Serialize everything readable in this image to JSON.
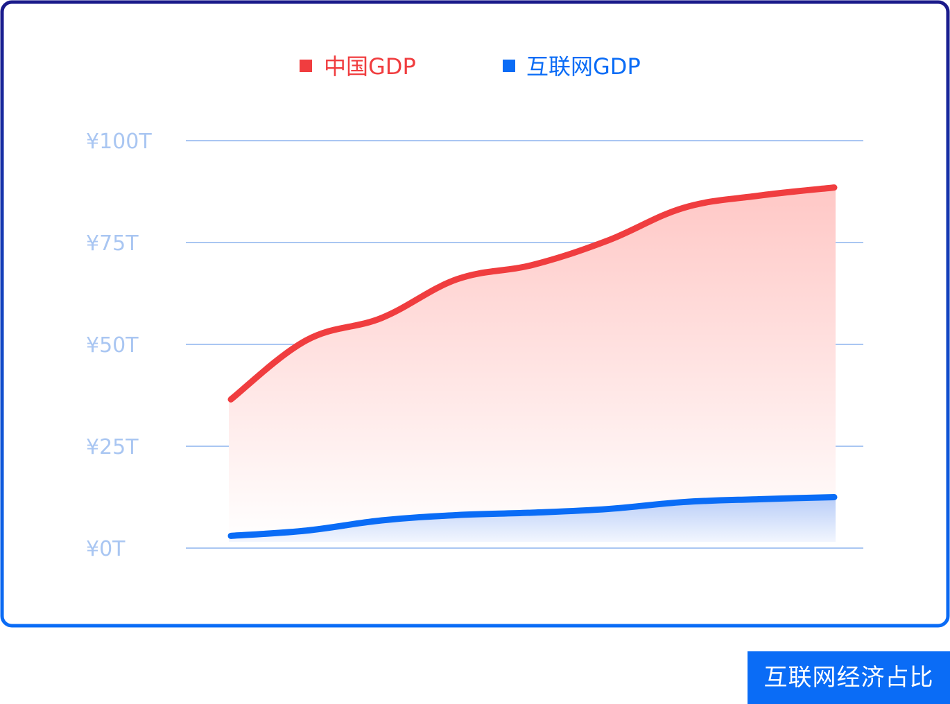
{
  "chart_data": {
    "type": "area",
    "x": [
      1,
      2,
      3,
      4,
      5,
      6,
      7,
      8,
      9
    ],
    "series": [
      {
        "name": "中国GDP",
        "values": [
          36.5,
          51,
          56.5,
          66,
          69.5,
          75.5,
          83.5,
          86.5,
          88.5
        ],
        "color": "#f03d3f"
      },
      {
        "name": "互联网GDP",
        "values": [
          3,
          4.3,
          6.8,
          8.1,
          8.7,
          9.6,
          11.3,
          12,
          12.5
        ],
        "color": "#0a6cf6"
      }
    ],
    "yticks": [
      "¥0T",
      "¥25T",
      "¥50T",
      "¥75T",
      "¥100T"
    ],
    "ytick_values": [
      0,
      25,
      50,
      75,
      100
    ],
    "ylim": [
      0,
      100
    ],
    "grid": true,
    "legend_position": "top-center"
  },
  "badge": {
    "label": "互联网经济占比"
  },
  "colors": {
    "frame_top": "#1a1a8a",
    "frame_bottom": "#0a6cf6",
    "grid": "#a9c6f2"
  }
}
